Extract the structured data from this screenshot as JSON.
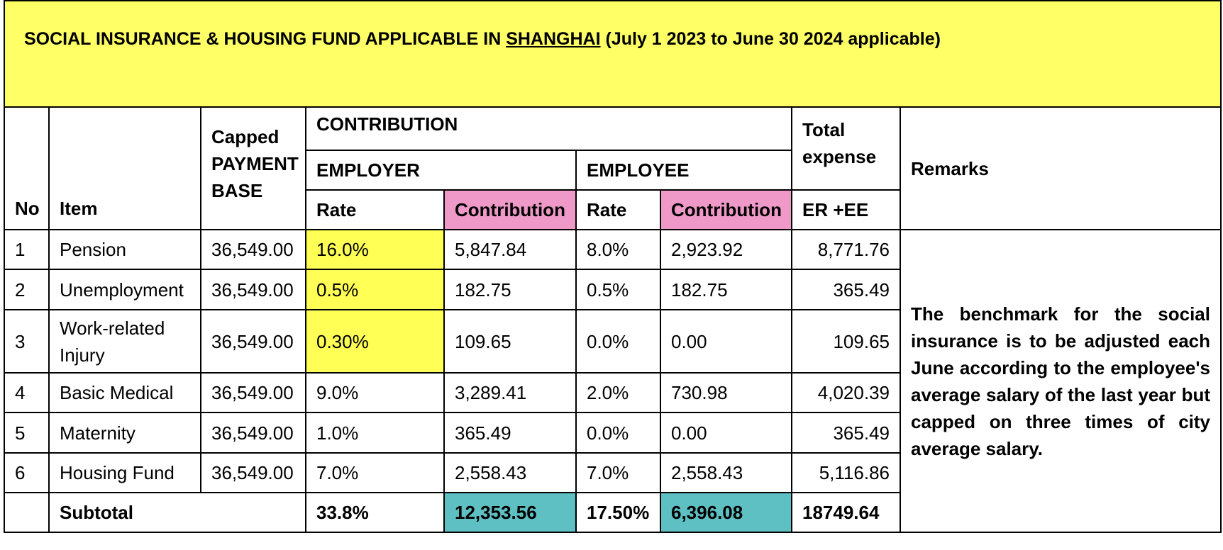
{
  "title": {
    "prefix": "SOCIAL INSURANCE & HOUSING FUND APPLICABLE IN ",
    "city": "SHANGHAI",
    "suffix": " (July 1 2023 to June 30 2024 applicable)"
  },
  "headers": {
    "no": "No",
    "item": "Item",
    "payment_base": "Capped PAYMENT BASE",
    "contribution": "CONTRIBUTION",
    "employer": "EMPLOYER",
    "employee": "EMPLOYEE",
    "rate": "Rate",
    "contribution_col": "Contribution",
    "total_expense": "Total expense",
    "er_ee": "ER +EE",
    "remarks": "Remarks"
  },
  "rows": [
    {
      "no": "1",
      "item": "Pension",
      "base": "36,549.00",
      "er_rate": "16.0%",
      "er_contrib": "5,847.84",
      "ee_rate": "8.0%",
      "ee_contrib": "2,923.92",
      "total": "8,771.76"
    },
    {
      "no": "2",
      "item": "Unemployment",
      "base": "36,549.00",
      "er_rate": "0.5%",
      "er_contrib": "182.75",
      "ee_rate": "0.5%",
      "ee_contrib": "182.75",
      "total": "365.49"
    },
    {
      "no": "3",
      "item": "Work-related Injury",
      "base": "36,549.00",
      "er_rate": "0.30%",
      "er_contrib": "109.65",
      "ee_rate": "0.0%",
      "ee_contrib": "0.00",
      "total": "109.65"
    },
    {
      "no": "4",
      "item": "Basic Medical",
      "base": "36,549.00",
      "er_rate": "9.0%",
      "er_contrib": "3,289.41",
      "ee_rate": "2.0%",
      "ee_contrib": "730.98",
      "total": "4,020.39"
    },
    {
      "no": "5",
      "item": "Maternity",
      "base": "36,549.00",
      "er_rate": "1.0%",
      "er_contrib": "365.49",
      "ee_rate": "0.0%",
      "ee_contrib": "0.00",
      "total": "365.49"
    },
    {
      "no": "6",
      "item": "Housing Fund",
      "base": "36,549.00",
      "er_rate": "7.0%",
      "er_contrib": "2,558.43",
      "ee_rate": "7.0%",
      "ee_contrib": "2,558.43",
      "total": "5,116.86"
    }
  ],
  "subtotal": {
    "label": "Subtotal",
    "er_rate": "33.8%",
    "er_contrib": "12,353.56",
    "ee_rate": "17.50%",
    "ee_contrib": "6,396.08",
    "total": "18749.64"
  },
  "remarks_text": "The benchmark for the social insurance is to be adjusted each June according to the employee's average salary of the last year but capped on three times of city average salary.",
  "colors": {
    "title_bg": "#ffff66",
    "highlight_yellow": "#ffff55",
    "header_pink": "#ee99c8",
    "subtotal_teal": "#5fc0c4"
  }
}
